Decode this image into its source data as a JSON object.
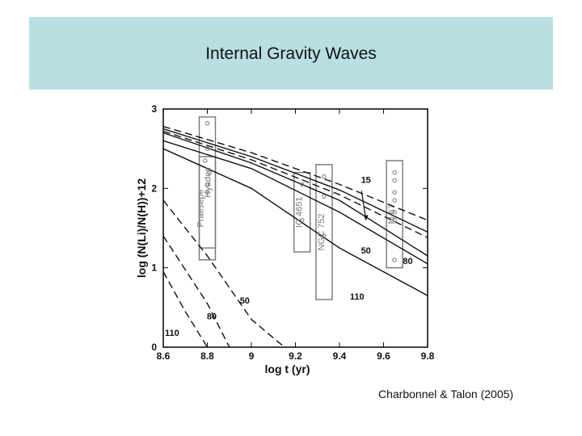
{
  "slide": {
    "title": "Internal Gravity Waves",
    "citation": "Charbonnel & Talon (2005)"
  },
  "colors": {
    "title_band": "#b9dfe2",
    "ink": "#111111",
    "cluster_label": "#777777"
  },
  "chart_data": {
    "type": "line",
    "title": "",
    "xlabel": "log t (yr)",
    "ylabel": "log (N(Li)/N(H))+12",
    "xlim": [
      8.6,
      9.8
    ],
    "ylim": [
      0,
      3
    ],
    "xticks": [
      8.6,
      8.8,
      9,
      9.2,
      9.4,
      9.6,
      9.8
    ],
    "xtick_labels": [
      "8.6",
      "8.8",
      "9",
      "9.2",
      "9.4",
      "9.6",
      "9.8"
    ],
    "yticks": [
      0,
      1,
      2,
      3
    ],
    "ytick_labels": [
      "0",
      "1",
      "2",
      "3"
    ],
    "series": [
      {
        "name": "15",
        "style": "solid",
        "x": [
          8.6,
          9.0,
          9.4,
          9.8
        ],
        "y": [
          2.75,
          2.4,
          1.98,
          1.45
        ]
      },
      {
        "name": "15",
        "style": "dashed",
        "x": [
          8.6,
          9.0,
          9.4,
          9.8
        ],
        "y": [
          2.78,
          2.45,
          2.05,
          1.6
        ]
      },
      {
        "name": "50",
        "style": "solid",
        "x": [
          8.6,
          9.0,
          9.4,
          9.8
        ],
        "y": [
          2.6,
          2.25,
          1.7,
          1.05
        ]
      },
      {
        "name": "80",
        "style": "solid",
        "x": [
          8.6,
          9.0,
          9.4,
          9.8
        ],
        "y": [
          2.7,
          2.32,
          1.85,
          1.15
        ]
      },
      {
        "name": "80",
        "style": "dashed",
        "x": [
          8.6,
          9.0,
          9.4,
          9.8
        ],
        "y": [
          2.72,
          2.36,
          1.92,
          1.38
        ]
      },
      {
        "name": "110",
        "style": "solid",
        "x": [
          8.6,
          9.0,
          9.4,
          9.8
        ],
        "y": [
          2.5,
          2.0,
          1.25,
          0.65
        ]
      },
      {
        "name": "50",
        "style": "dashed",
        "x": [
          8.6,
          8.8,
          9.0,
          9.15
        ],
        "y": [
          1.85,
          1.15,
          0.35,
          0.0
        ]
      },
      {
        "name": "80",
        "style": "dashed",
        "x": [
          8.6,
          8.8,
          8.9
        ],
        "y": [
          1.4,
          0.55,
          0.0
        ]
      },
      {
        "name": "110",
        "style": "dashed",
        "x": [
          8.6,
          8.7,
          8.8
        ],
        "y": [
          0.95,
          0.45,
          0.0
        ]
      }
    ],
    "clusters": [
      {
        "name": "Hyades",
        "x": 8.8,
        "y_range": [
          1.25,
          2.9
        ]
      },
      {
        "name": "Praesepe",
        "x": 8.8,
        "y_range": [
          1.1,
          2.4
        ]
      },
      {
        "name": "IC 4651",
        "x": 9.23,
        "y_range": [
          1.2,
          2.2
        ]
      },
      {
        "name": "NGC 752",
        "x": 9.33,
        "y_range": [
          0.6,
          2.3
        ]
      },
      {
        "name": "M 67",
        "x": 9.65,
        "y_range": [
          1.0,
          2.35
        ]
      }
    ],
    "cluster_points": [
      {
        "x": 8.8,
        "y": 2.82
      },
      {
        "x": 8.8,
        "y": 2.5
      },
      {
        "x": 8.79,
        "y": 2.35
      },
      {
        "x": 8.81,
        "y": 2.2
      },
      {
        "x": 8.8,
        "y": 2.05
      },
      {
        "x": 8.8,
        "y": 1.95
      },
      {
        "x": 9.23,
        "y": 2.05
      },
      {
        "x": 9.23,
        "y": 1.6
      },
      {
        "x": 9.33,
        "y": 2.15
      },
      {
        "x": 9.33,
        "y": 1.9
      },
      {
        "x": 9.33,
        "y": 1.4
      },
      {
        "x": 9.65,
        "y": 2.2
      },
      {
        "x": 9.65,
        "y": 2.1
      },
      {
        "x": 9.65,
        "y": 1.95
      },
      {
        "x": 9.65,
        "y": 1.85
      },
      {
        "x": 9.65,
        "y": 1.7
      },
      {
        "x": 9.65,
        "y": 1.6
      },
      {
        "x": 9.65,
        "y": 1.1
      }
    ],
    "annotations": [
      {
        "text": "15",
        "x": 9.52,
        "y": 2.07
      },
      {
        "text": "50",
        "x": 9.52,
        "y": 1.18
      },
      {
        "text": "80",
        "x": 9.71,
        "y": 1.05
      },
      {
        "text": "110",
        "x": 9.48,
        "y": 0.6
      },
      {
        "text": "50",
        "x": 8.97,
        "y": 0.55
      },
      {
        "text": "80",
        "x": 8.82,
        "y": 0.35
      },
      {
        "text": "110",
        "x": 8.64,
        "y": 0.14
      }
    ]
  }
}
